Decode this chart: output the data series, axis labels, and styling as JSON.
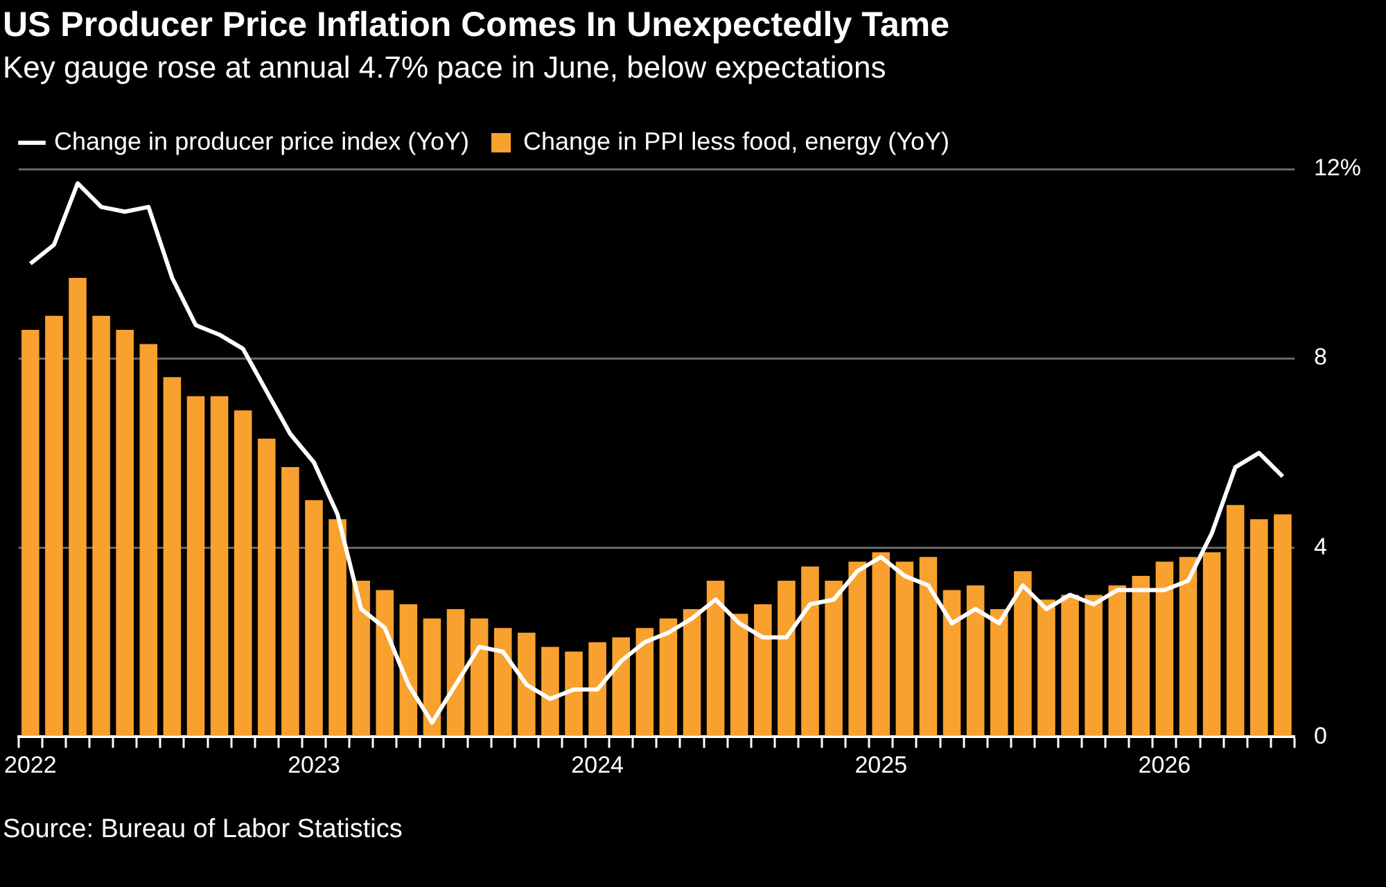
{
  "chart_data": {
    "type": "bar",
    "title": "US Producer Price Inflation Comes In Unexpectedly Tame",
    "subtitle": "Key gauge rose at annual 4.7% pace in June, below expectations",
    "categories": [
      "2022",
      null,
      null,
      null,
      null,
      null,
      null,
      null,
      null,
      null,
      null,
      null,
      "2023",
      null,
      null,
      null,
      null,
      null,
      null,
      null,
      null,
      null,
      null,
      null,
      "2024",
      null,
      null,
      null,
      null,
      null,
      null,
      null,
      null,
      null,
      null,
      null,
      "2025",
      null,
      null,
      null,
      null,
      null,
      null,
      null,
      null,
      null,
      null,
      null,
      "2026",
      null,
      null,
      null,
      null,
      null
    ],
    "series": [
      {
        "name": "Change in producer price index (YoY)",
        "type": "line",
        "color": "#ffffff",
        "values": [
          10.0,
          10.4,
          11.7,
          11.2,
          11.1,
          11.2,
          9.7,
          8.7,
          8.5,
          8.2,
          7.3,
          6.4,
          5.8,
          4.7,
          2.7,
          2.3,
          1.1,
          0.3,
          1.1,
          1.9,
          1.8,
          1.1,
          0.8,
          1.0,
          1.0,
          1.6,
          2.0,
          2.2,
          2.5,
          2.9,
          2.4,
          2.1,
          2.1,
          2.8,
          2.9,
          3.5,
          3.8,
          3.4,
          3.2,
          2.4,
          2.7,
          2.4,
          3.2,
          2.7,
          3.0,
          2.8,
          3.1,
          3.1,
          3.1,
          3.3,
          4.3,
          5.7,
          6.0,
          5.5
        ]
      },
      {
        "name": "Change in PPI less food, energy (YoY)",
        "color": "#f9a12e",
        "values": [
          8.6,
          8.9,
          9.7,
          8.9,
          8.6,
          8.3,
          7.6,
          7.2,
          7.2,
          6.9,
          6.3,
          5.7,
          5.0,
          4.6,
          3.3,
          3.1,
          2.8,
          2.5,
          2.7,
          2.5,
          2.3,
          2.2,
          1.9,
          1.8,
          2.0,
          2.1,
          2.3,
          2.5,
          2.7,
          3.3,
          2.6,
          2.8,
          3.3,
          3.6,
          3.3,
          3.7,
          3.9,
          3.7,
          3.8,
          3.1,
          3.2,
          2.7,
          3.5,
          2.9,
          3.0,
          3.0,
          3.2,
          3.4,
          3.7,
          3.8,
          3.9,
          4.9,
          4.6,
          4.7
        ]
      }
    ],
    "ylim": [
      0,
      12
    ],
    "yticks": [
      0,
      4,
      8,
      {
        "value": 12,
        "label": "12%"
      }
    ],
    "grid": "y",
    "legend": "top left",
    "annotations": [
      "Source: Bureau of Labor Statistics"
    ]
  }
}
